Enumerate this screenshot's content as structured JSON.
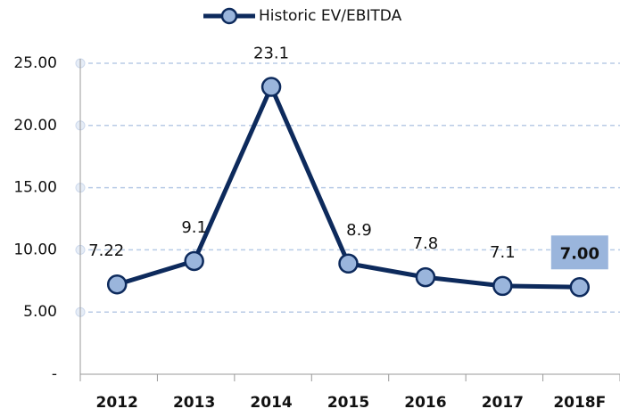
{
  "chart_data": {
    "type": "line",
    "categories": [
      "2012",
      "2013",
      "2014",
      "2015",
      "2016",
      "2017",
      "2018F"
    ],
    "series": [
      {
        "name": "Historic EV/EBITDA",
        "color": "#0d2a5c",
        "marker_color": "#9ab5dc",
        "values": [
          7.22,
          9.1,
          23.1,
          8.9,
          7.8,
          7.1,
          7.0
        ],
        "value_labels": [
          "7.22",
          "9.1",
          "23.1",
          "8.9",
          "7.8",
          "7.1",
          "7.00"
        ]
      }
    ],
    "ylim": [
      0,
      25
    ],
    "yticks": [
      {
        "value": 0,
        "label": "-"
      },
      {
        "value": 5,
        "label": "5.00"
      },
      {
        "value": 10,
        "label": "10.00"
      },
      {
        "value": 15,
        "label": "15.00"
      },
      {
        "value": 20,
        "label": "20.00"
      },
      {
        "value": 25,
        "label": "25.00"
      }
    ],
    "grid": true,
    "legend": "top"
  }
}
